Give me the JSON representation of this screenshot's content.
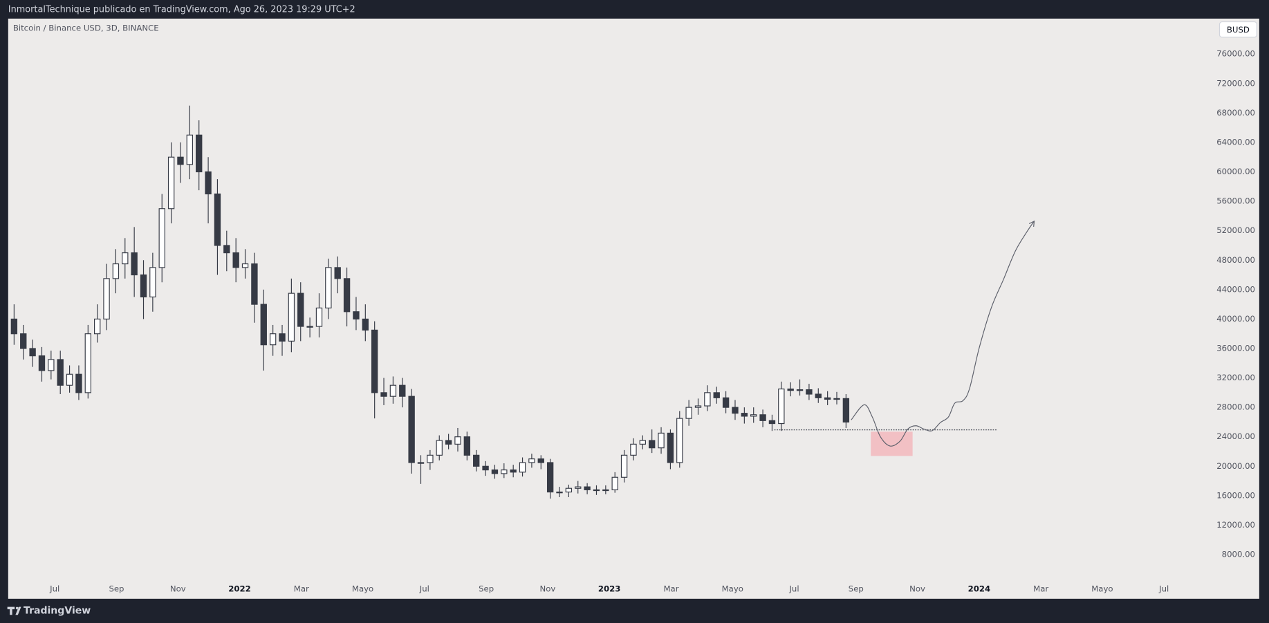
{
  "header": {
    "title": "InmortalTechnique publicado en TradingView.com, Ago 26, 2023 19:29 UTC+2"
  },
  "footer": {
    "brand": "TradingView"
  },
  "chart_data": {
    "type": "candlestick",
    "title": "Bitcoin / Binance USD, 3D, BINANCE",
    "currency": "BUSD",
    "up_color": "#ffffff",
    "down_color": "#363a45",
    "wick_color": "#363a45",
    "grid": false,
    "xlim": [
      2021.374,
      2024.613
    ],
    "ylim": [
      2000,
      80600
    ],
    "xticks": [
      {
        "value": 2021.5,
        "label": "Jul"
      },
      {
        "value": 2021.667,
        "label": "Sep"
      },
      {
        "value": 2021.833,
        "label": "Nov"
      },
      2022,
      {
        "value": 2022.167,
        "label": "Mar"
      },
      {
        "value": 2022.333,
        "label": "Mayo"
      },
      {
        "value": 2022.5,
        "label": "Jul"
      },
      {
        "value": 2022.667,
        "label": "Sep"
      },
      {
        "value": 2022.833,
        "label": "Nov"
      },
      2023,
      {
        "value": 2023.167,
        "label": "Mar"
      },
      {
        "value": 2023.333,
        "label": "Mayo"
      },
      {
        "value": 2023.5,
        "label": "Jul"
      },
      {
        "value": 2023.667,
        "label": "Sep"
      },
      {
        "value": 2023.833,
        "label": "Nov"
      },
      2024,
      {
        "value": 2024.167,
        "label": "Mar"
      },
      {
        "value": 2024.333,
        "label": "Mayo"
      },
      {
        "value": 2024.5,
        "label": "Jul"
      }
    ],
    "yticks": [
      {
        "value": 8000,
        "label": "8000.00"
      },
      {
        "value": 12000,
        "label": "12000.00"
      },
      {
        "value": 16000,
        "label": "16000.00"
      },
      {
        "value": 20000,
        "label": "20000.00"
      },
      {
        "value": 24000,
        "label": "24000.00"
      },
      {
        "value": 28000,
        "label": "28000.00"
      },
      {
        "value": 32000,
        "label": "32000.00"
      },
      {
        "value": 36000,
        "label": "36000.00"
      },
      {
        "value": 40000,
        "label": "40000.00"
      },
      {
        "value": 44000,
        "label": "44000.00"
      },
      {
        "value": 48000,
        "label": "48000.00"
      },
      {
        "value": 52000,
        "label": "52000.00"
      },
      {
        "value": 56000,
        "label": "56000.00"
      },
      {
        "value": 60000,
        "label": "60000.00"
      },
      {
        "value": 64000,
        "label": "64000.00"
      },
      {
        "value": 68000,
        "label": "68000.00"
      },
      {
        "value": 72000,
        "label": "72000.00"
      },
      {
        "value": 76000,
        "label": "76000.00"
      }
    ],
    "x": [
      2021.39,
      2021.415,
      2021.44,
      2021.465,
      2021.49,
      2021.515,
      2021.54,
      2021.565,
      2021.59,
      2021.615,
      2021.64,
      2021.665,
      2021.69,
      2021.715,
      2021.74,
      2021.765,
      2021.79,
      2021.815,
      2021.84,
      2021.865,
      2021.89,
      2021.915,
      2021.94,
      2021.965,
      2021.99,
      2022.015,
      2022.04,
      2022.065,
      2022.09,
      2022.115,
      2022.14,
      2022.165,
      2022.19,
      2022.215,
      2022.24,
      2022.265,
      2022.29,
      2022.315,
      2022.34,
      2022.365,
      2022.39,
      2022.415,
      2022.44,
      2022.465,
      2022.49,
      2022.515,
      2022.54,
      2022.565,
      2022.59,
      2022.615,
      2022.64,
      2022.665,
      2022.69,
      2022.715,
      2022.74,
      2022.765,
      2022.79,
      2022.815,
      2022.84,
      2022.865,
      2022.89,
      2022.915,
      2022.94,
      2022.965,
      2022.99,
      2023.015,
      2023.04,
      2023.065,
      2023.09,
      2023.115,
      2023.14,
      2023.165,
      2023.19,
      2023.215,
      2023.24,
      2023.265,
      2023.29,
      2023.315,
      2023.34,
      2023.365,
      2023.39,
      2023.415,
      2023.44,
      2023.465,
      2023.49,
      2023.515,
      2023.54,
      2023.565,
      2023.59,
      2023.615,
      2023.64
    ],
    "open": [
      40000,
      38000,
      36000,
      35000,
      33000,
      34500,
      31000,
      32500,
      30000,
      38000,
      40000,
      45500,
      47500,
      49000,
      46000,
      43000,
      47000,
      55000,
      62000,
      61000,
      65000,
      60000,
      57000,
      50000,
      49000,
      47000,
      47500,
      42000,
      36500,
      38000,
      37000,
      43500,
      39000,
      39000,
      41500,
      47000,
      45500,
      41000,
      40000,
      38500,
      30000,
      29500,
      31000,
      29500,
      20500,
      20500,
      21500,
      23500,
      23000,
      24000,
      21500,
      20000,
      19500,
      19000,
      19500,
      19200,
      20500,
      21000,
      20500,
      16500,
      16500,
      17000,
      17200,
      16800,
      16700,
      16800,
      18500,
      21500,
      23000,
      23500,
      22500,
      24500,
      20500,
      26500,
      28000,
      28200,
      30000,
      29300,
      28000,
      27200,
      26800,
      27000,
      26200,
      25800,
      30500,
      30300,
      30400,
      29800,
      29300,
      29100,
      29200
    ],
    "high": [
      42000,
      39200,
      37200,
      36200,
      35700,
      35700,
      33700,
      33700,
      39200,
      42000,
      47500,
      49500,
      51000,
      52500,
      48000,
      49000,
      57000,
      64000,
      64000,
      69000,
      67000,
      62000,
      59000,
      52000,
      51000,
      49500,
      49000,
      44000,
      39200,
      39200,
      45500,
      45000,
      40200,
      43500,
      48200,
      48500,
      47000,
      43000,
      42000,
      39700,
      32000,
      32200,
      32000,
      30500,
      21500,
      22200,
      24200,
      24400,
      25200,
      24700,
      22200,
      20700,
      20200,
      20400,
      20200,
      21200,
      21700,
      21500,
      21000,
      17200,
      17500,
      18000,
      17700,
      17400,
      17400,
      19200,
      22200,
      23800,
      24200,
      25000,
      25300,
      25000,
      27500,
      29000,
      29200,
      31000,
      30800,
      30200,
      29000,
      28000,
      28000,
      27700,
      27000,
      31500,
      31400,
      31800,
      31200,
      30600,
      30200,
      30100,
      29800
    ],
    "low": [
      36500,
      34500,
      33500,
      31500,
      31800,
      29800,
      30000,
      29000,
      29200,
      36800,
      38500,
      43500,
      45500,
      43000,
      40000,
      41000,
      45000,
      53000,
      58500,
      59000,
      57500,
      53000,
      46000,
      46500,
      45000,
      45500,
      39500,
      33000,
      35000,
      35000,
      35500,
      37000,
      37500,
      37500,
      40000,
      43500,
      39000,
      38500,
      37000,
      26500,
      28300,
      28500,
      28000,
      19000,
      17600,
      19500,
      20800,
      22300,
      22000,
      20800,
      19300,
      18700,
      18300,
      18400,
      18500,
      18600,
      19800,
      19600,
      15600,
      15800,
      15800,
      16300,
      16200,
      16100,
      16200,
      16400,
      17800,
      20800,
      22300,
      21800,
      21700,
      19600,
      19800,
      25500,
      27000,
      27500,
      28500,
      27200,
      26300,
      25800,
      25900,
      25300,
      24800,
      24800,
      29500,
      29600,
      29000,
      28600,
      28300,
      28400,
      25200
    ],
    "close": [
      38000,
      36000,
      35000,
      33000,
      34500,
      31000,
      32500,
      30000,
      38000,
      40000,
      45500,
      47500,
      49000,
      46000,
      43000,
      47000,
      55000,
      62000,
      61000,
      65000,
      60000,
      57000,
      50000,
      49000,
      47000,
      47500,
      42000,
      36500,
      38000,
      37000,
      43500,
      39000,
      39000,
      41500,
      47000,
      45500,
      41000,
      40000,
      38500,
      30000,
      29500,
      31000,
      29500,
      20500,
      20500,
      21500,
      23500,
      23000,
      24000,
      21500,
      20000,
      19500,
      19000,
      19500,
      19200,
      20500,
      21000,
      20500,
      16500,
      16500,
      17000,
      17200,
      16800,
      16700,
      16800,
      18500,
      21500,
      23000,
      23500,
      22500,
      24500,
      20500,
      26500,
      28000,
      28200,
      30000,
      29300,
      28000,
      27200,
      26800,
      27000,
      26200,
      25800,
      30500,
      30300,
      30400,
      29800,
      29300,
      29100,
      29200,
      26000
    ],
    "support": {
      "x": [
        2023.446,
        2024.048
      ],
      "y": 24940,
      "color": "#363a45"
    },
    "zone": {
      "x": [
        2023.707,
        2023.82
      ],
      "y": [
        21400,
        24700
      ],
      "color": "#f2b8bd"
    },
    "projection": {
      "color": "#5d606b",
      "x": [
        2023.654,
        2023.689,
        2023.711,
        2023.733,
        2023.759,
        2023.786,
        2023.807,
        2023.829,
        2023.851,
        2023.873,
        2023.895,
        2023.917,
        2023.934,
        2023.956,
        2023.974,
        2024.0,
        2024.033,
        2024.066,
        2024.098,
        2024.131,
        2024.149
      ],
      "y": [
        26300,
        28350,
        26700,
        24000,
        22750,
        23400,
        25050,
        25500,
        25050,
        24830,
        25930,
        26700,
        28570,
        28900,
        30550,
        36050,
        41550,
        45400,
        49250,
        52000,
        53300
      ]
    }
  }
}
